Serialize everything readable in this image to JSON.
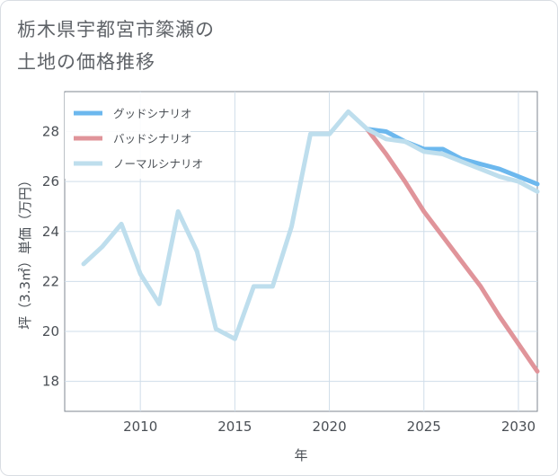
{
  "title_line1": "栃木県宇都宮市簗瀬の",
  "title_line2": "土地の価格推移",
  "chart_data": {
    "type": "line",
    "title": "栃木県宇都宮市簗瀬の土地の価格推移",
    "xlabel": "年",
    "ylabel": "坪（3.3㎡）単価（万円）",
    "xlim": [
      2006,
      2031
    ],
    "ylim": [
      16.8,
      29.6
    ],
    "xticks": [
      2010,
      2015,
      2020,
      2025,
      2030
    ],
    "yticks": [
      18,
      20,
      22,
      24,
      26,
      28
    ],
    "grid": true,
    "legend_position": "top-left",
    "series": [
      {
        "name": "グッドシナリオ",
        "color": "#6cb8ee",
        "x": [
          2022,
          2023,
          2024,
          2025,
          2026,
          2027,
          2028,
          2029,
          2030,
          2031
        ],
        "values": [
          28.1,
          28.0,
          27.6,
          27.3,
          27.3,
          26.9,
          26.7,
          26.5,
          26.2,
          25.9
        ]
      },
      {
        "name": "バッドシナリオ",
        "color": "#e0949a",
        "x": [
          2022,
          2023,
          2024,
          2025,
          2026,
          2027,
          2028,
          2029,
          2030,
          2031
        ],
        "values": [
          28.1,
          27.1,
          26.0,
          24.8,
          23.8,
          22.8,
          21.8,
          20.6,
          19.5,
          18.4
        ]
      },
      {
        "name": "ノーマルシナリオ",
        "color": "#bedeed",
        "x": [
          2007,
          2008,
          2009,
          2010,
          2011,
          2012,
          2013,
          2014,
          2015,
          2016,
          2017,
          2018,
          2019,
          2020,
          2021,
          2022,
          2023,
          2024,
          2025,
          2026,
          2027,
          2028,
          2029,
          2030,
          2031
        ],
        "values": [
          22.7,
          23.4,
          24.3,
          22.3,
          21.1,
          24.8,
          23.2,
          20.1,
          19.7,
          21.8,
          21.8,
          24.2,
          27.9,
          27.9,
          28.8,
          28.1,
          27.7,
          27.6,
          27.2,
          27.1,
          26.8,
          26.5,
          26.2,
          26.0,
          25.6
        ]
      }
    ]
  }
}
